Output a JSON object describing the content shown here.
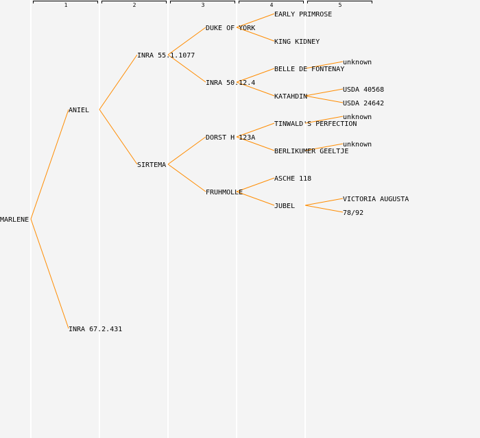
{
  "generations": [
    "1",
    "2",
    "3",
    "4",
    "5"
  ],
  "line_color": "#ff8c00",
  "tree": {
    "name": "MARLENE",
    "sire": {
      "name": "ANIEL",
      "sire": {
        "name": "INRA 55.1.1077",
        "sire": {
          "name": "DUKE OF YORK",
          "sire": {
            "name": "EARLY PRIMROSE"
          },
          "dam": {
            "name": "KING KIDNEY"
          }
        },
        "dam": {
          "name": "INRA 50.12.4",
          "sire": {
            "name": "BELLE DE FONTENAY",
            "sire": {
              "name": "unknown"
            }
          },
          "dam": {
            "name": "KATAHDIN",
            "sire": {
              "name": "USDA 40568"
            },
            "dam": {
              "name": "USDA 24642"
            }
          }
        }
      },
      "dam": {
        "name": "SIRTEMA",
        "sire": {
          "name": "DORST H 123A",
          "sire": {
            "name": "TINWALD'S PERFECTION",
            "sire": {
              "name": "unknown"
            }
          },
          "dam": {
            "name": "BERLIKUMER GEELTJE",
            "sire": {
              "name": "unknown"
            }
          }
        },
        "dam": {
          "name": "FRUHMOLLE",
          "sire": {
            "name": "ASCHE 118"
          },
          "dam": {
            "name": "JUBEL",
            "sire": {
              "name": "VICTORIA AUGUSTA"
            },
            "dam": {
              "name": "78/92"
            }
          }
        }
      }
    },
    "dam": {
      "name": "INRA 67.2.431"
    }
  }
}
